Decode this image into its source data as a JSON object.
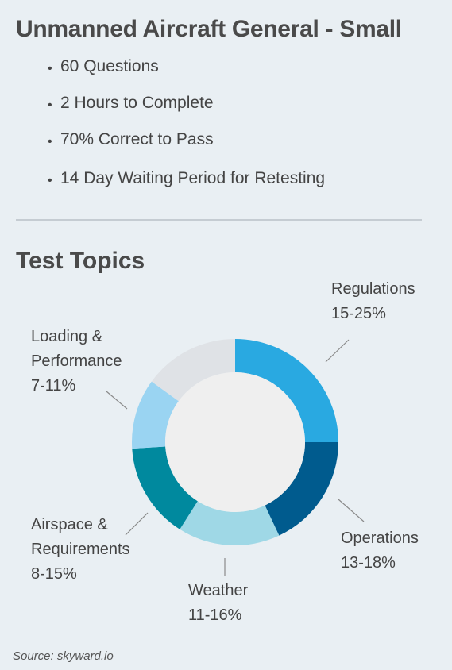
{
  "header": {
    "title": "Unmanned Aircraft General - Small",
    "facts": [
      "60 Questions",
      "2 Hours to Complete",
      "70% Correct to Pass",
      "14 Day Waiting Period for Retesting"
    ]
  },
  "section_title": "Test Topics",
  "chart_data": {
    "type": "pie",
    "style": "donut",
    "title": "Test Topics",
    "slices": [
      {
        "name": "Regulations",
        "range": "15-25%",
        "value": 25,
        "color": "#29a9e1"
      },
      {
        "name": "Operations",
        "range": "13-18%",
        "value": 18,
        "color": "#005b8e"
      },
      {
        "name": "Weather",
        "range": "11-16%",
        "value": 16,
        "color": "#9fd8e6"
      },
      {
        "name": "Airspace & Requirements",
        "range": "8-15%",
        "value": 15,
        "color": "#00899e"
      },
      {
        "name": "Loading & Performance",
        "range": "7-11%",
        "value": 11,
        "color": "#9ad4f2"
      },
      {
        "name": "",
        "range": "",
        "value": 15,
        "color": "#dfe2e6"
      }
    ],
    "labels": {
      "regulations": [
        "Regulations",
        "15-25%"
      ],
      "operations": [
        "Operations",
        "13-18%"
      ],
      "weather": [
        "Weather",
        "11-16%"
      ],
      "airspace": [
        "Airspace &",
        "Requirements",
        "8-15%"
      ],
      "loading": [
        "Loading &",
        "Performance",
        "7-11%"
      ]
    },
    "center_color": "#efefef",
    "leader_color": "#8a8a8a"
  },
  "footer": {
    "source": "Source: skyward.io"
  }
}
